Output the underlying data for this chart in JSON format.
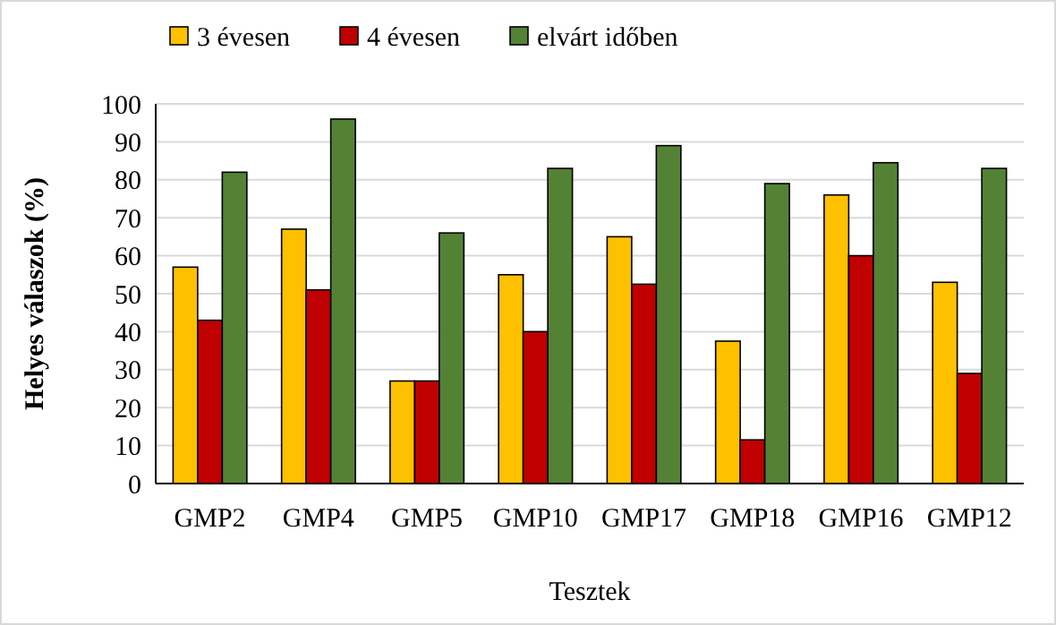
{
  "chart_data": {
    "type": "bar",
    "xlabel": "Tesztek",
    "ylabel": "Helyes válaszok (%)",
    "categories": [
      "GMP2",
      "GMP4",
      "GMP5",
      "GMP10",
      "GMP17",
      "GMP18",
      "GMP16",
      "GMP12"
    ],
    "series": [
      {
        "name": "3 évesen",
        "color": "#ffc000",
        "values": [
          57,
          67,
          27,
          55,
          65,
          37.5,
          76,
          53
        ]
      },
      {
        "name": "4 évesen",
        "color": "#c00000",
        "values": [
          43,
          51,
          27,
          40,
          52.5,
          11.5,
          60,
          29
        ]
      },
      {
        "name": "elvárt időben",
        "color": "#548235",
        "values": [
          82,
          96,
          66,
          83,
          89,
          79,
          84.5,
          83
        ]
      }
    ],
    "ylim": [
      0,
      100
    ],
    "yticks": [
      0,
      10,
      20,
      30,
      40,
      50,
      60,
      70,
      80,
      90,
      100
    ],
    "grid": "y",
    "legend": "top"
  }
}
